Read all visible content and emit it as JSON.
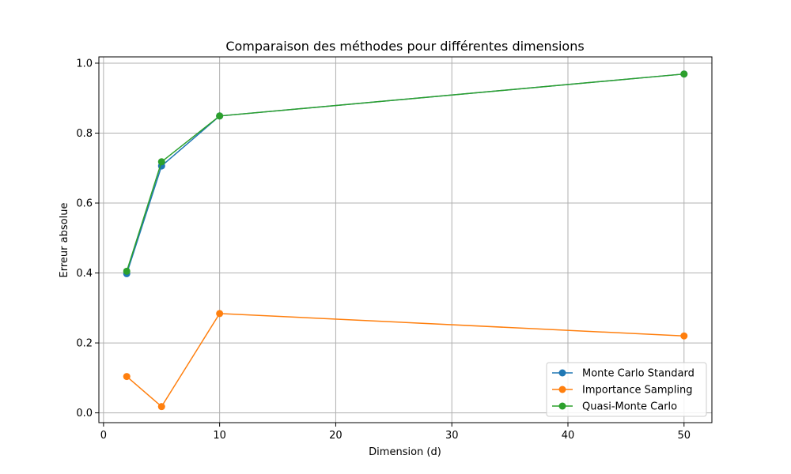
{
  "chart_data": {
    "type": "line",
    "title": "Comparaison des méthodes pour différentes dimensions",
    "xlabel": "Dimension (d)",
    "ylabel": "Erreur absolue",
    "x": [
      2,
      5,
      10,
      50
    ],
    "xlim": [
      -0.4,
      52.4
    ],
    "ylim": [
      -0.028,
      1.018
    ],
    "xticks": [
      0,
      10,
      20,
      30,
      40,
      50
    ],
    "yticks": [
      0.0,
      0.2,
      0.4,
      0.6,
      0.8,
      1.0
    ],
    "ytick_labels": [
      "0.0",
      "0.2",
      "0.4",
      "0.6",
      "0.8",
      "1.0"
    ],
    "grid": true,
    "legend_position": "lower-right",
    "series": [
      {
        "name": "Monte Carlo Standard",
        "color": "#1f77b4",
        "values": [
          0.398,
          0.706,
          0.849,
          0.969
        ]
      },
      {
        "name": "Importance Sampling",
        "color": "#ff7f0e",
        "values": [
          0.104,
          0.018,
          0.284,
          0.22
        ]
      },
      {
        "name": "Quasi-Monte Carlo",
        "color": "#2ca02c",
        "values": [
          0.405,
          0.718,
          0.849,
          0.969
        ]
      }
    ]
  }
}
